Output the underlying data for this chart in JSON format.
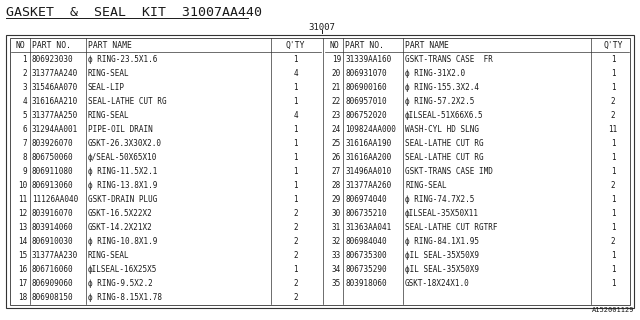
{
  "title": "GASKET  &  SEAL  KIT  31007AA440",
  "subtitle": "31007",
  "bg_color": "#ffffff",
  "text_color": "#1a1a1a",
  "border_color": "#333333",
  "font_size": 5.5,
  "header_font_size": 5.8,
  "title_font_size": 9.5,
  "subtitle_font_size": 6.5,
  "watermark": "A152001129",
  "left_rows": [
    [
      "1",
      "806923030",
      "ф RING-23.5X1.6",
      "1"
    ],
    [
      "2",
      "31377AA240",
      "RING-SEAL",
      "4"
    ],
    [
      "3",
      "31546AA070",
      "SEAL-LIP",
      "1"
    ],
    [
      "4",
      "31616AA210",
      "SEAL-LATHE CUT RG",
      "1"
    ],
    [
      "5",
      "31377AA250",
      "RING-SEAL",
      "4"
    ],
    [
      "6",
      "31294AA001",
      "PIPE-OIL DRAIN",
      "1"
    ],
    [
      "7",
      "803926070",
      "GSKT-26.3X30X2.0",
      "1"
    ],
    [
      "8",
      "806750060",
      "ф/SEAL-50X65X10",
      "1"
    ],
    [
      "9",
      "806911080",
      "ф RING-11.5X2.1",
      "1"
    ],
    [
      "10",
      "806913060",
      "ф RING-13.8X1.9",
      "1"
    ],
    [
      "11",
      "11126AA040",
      "GSKT-DRAIN PLUG",
      "1"
    ],
    [
      "12",
      "803916070",
      "GSKT-16.5X22X2",
      "2"
    ],
    [
      "13",
      "803914060",
      "GSKT-14.2X21X2",
      "2"
    ],
    [
      "14",
      "806910030",
      "ф RING-10.8X1.9",
      "2"
    ],
    [
      "15",
      "31377AA230",
      "RING-SEAL",
      "2"
    ],
    [
      "16",
      "806716060",
      "фILSEAL-16X25X5",
      "1"
    ],
    [
      "17",
      "806909060",
      "ф RING-9.5X2.2",
      "2"
    ],
    [
      "18",
      "806908150",
      "ф RING-8.15X1.78",
      "2"
    ]
  ],
  "right_rows": [
    [
      "19",
      "31339AA160",
      "GSKT-TRANS CASE  FR",
      "1"
    ],
    [
      "20",
      "806931070",
      "ф RING-31X2.0",
      "1"
    ],
    [
      "21",
      "806900160",
      "ф RING-155.3X2.4",
      "1"
    ],
    [
      "22",
      "806957010",
      "ф RING-57.2X2.5",
      "2"
    ],
    [
      "23",
      "806752020",
      "фILSEAL-51X66X6.5",
      "2"
    ],
    [
      "24",
      "109824AA000",
      "WASH-CYL HD SLNG",
      "11"
    ],
    [
      "25",
      "31616AA190",
      "SEAL-LATHE CUT RG",
      "1"
    ],
    [
      "26",
      "31616AA200",
      "SEAL-LATHE CUT RG",
      "1"
    ],
    [
      "27",
      "31496AA010",
      "GSKT-TRANS CASE IMD",
      "1"
    ],
    [
      "28",
      "31377AA260",
      "RING-SEAL",
      "2"
    ],
    [
      "29",
      "806974040",
      "ф RING-74.7X2.5",
      "1"
    ],
    [
      "30",
      "806735210",
      "фILSEAL-35X50X11",
      "1"
    ],
    [
      "31",
      "31363AA041",
      "SEAL-LATHE CUT RGTRF",
      "1"
    ],
    [
      "32",
      "806984040",
      "ф RING-84.1X1.95",
      "2"
    ],
    [
      "33",
      "806735300",
      "фIL SEAL-35X50X9",
      "1"
    ],
    [
      "34",
      "806735290",
      "фIL SEAL-35X50X9",
      "1"
    ],
    [
      "35",
      "803918060",
      "GSKT-18X24X1.0",
      "1"
    ]
  ]
}
